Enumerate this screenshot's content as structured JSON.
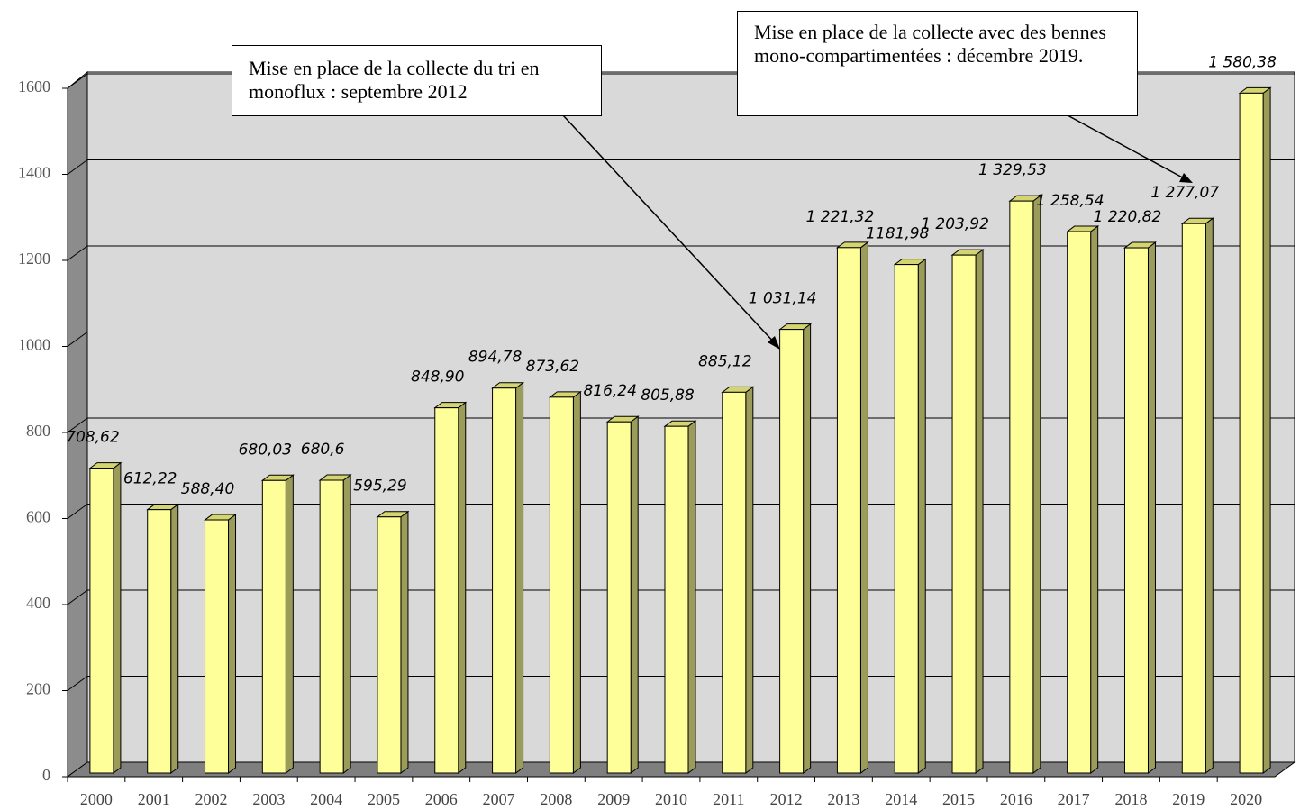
{
  "chart_data": {
    "type": "bar3d",
    "categories": [
      "2000",
      "2001",
      "2002",
      "2003",
      "2004",
      "2005",
      "2006",
      "2007",
      "2008",
      "2009",
      "2010",
      "2011",
      "2012",
      "2013",
      "2014",
      "2015",
      "2016",
      "2017",
      "2018",
      "2019",
      "2020"
    ],
    "values": [
      708.62,
      612.22,
      588.4,
      680.03,
      680.6,
      595.29,
      848.9,
      894.78,
      873.62,
      816.24,
      805.88,
      885.12,
      1031.14,
      1221.32,
      1181.98,
      1203.92,
      1329.53,
      1258.54,
      1220.82,
      1277.07,
      1580.38
    ],
    "value_labels": [
      "708,62",
      "612,22",
      "588,40",
      "680,03",
      "680,6",
      "595,29",
      "848,90",
      "894,78",
      "873,62",
      "816,24",
      "805,88",
      "885,12",
      "1 031,14",
      "1 221,32",
      "1181,98",
      "1 203,92",
      "1 329,53",
      "1 258,54",
      "1 220,82",
      "1 277,07",
      "1 580,38"
    ],
    "color": "#ffff99",
    "ylim": [
      0,
      1600
    ],
    "yticks": [
      0,
      200,
      400,
      600,
      800,
      1000,
      1200,
      1400,
      1600
    ],
    "grid": true,
    "annotations": [
      {
        "text": "Mise en place de la collecte du tri en monoflux : septembre 2012"
      },
      {
        "text": "Mise en place de la collecte avec des bennes mono-compartimentées : décembre 2019."
      }
    ]
  }
}
